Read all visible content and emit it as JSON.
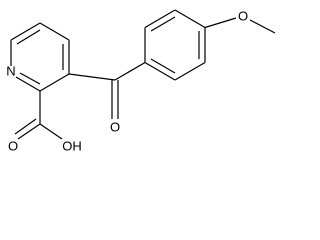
{
  "atoms": [
    {
      "label": "N"
    },
    {
      "label": "O"
    },
    {
      "label": "OH"
    },
    {
      "label": "O"
    },
    {
      "label": "O"
    }
  ]
}
